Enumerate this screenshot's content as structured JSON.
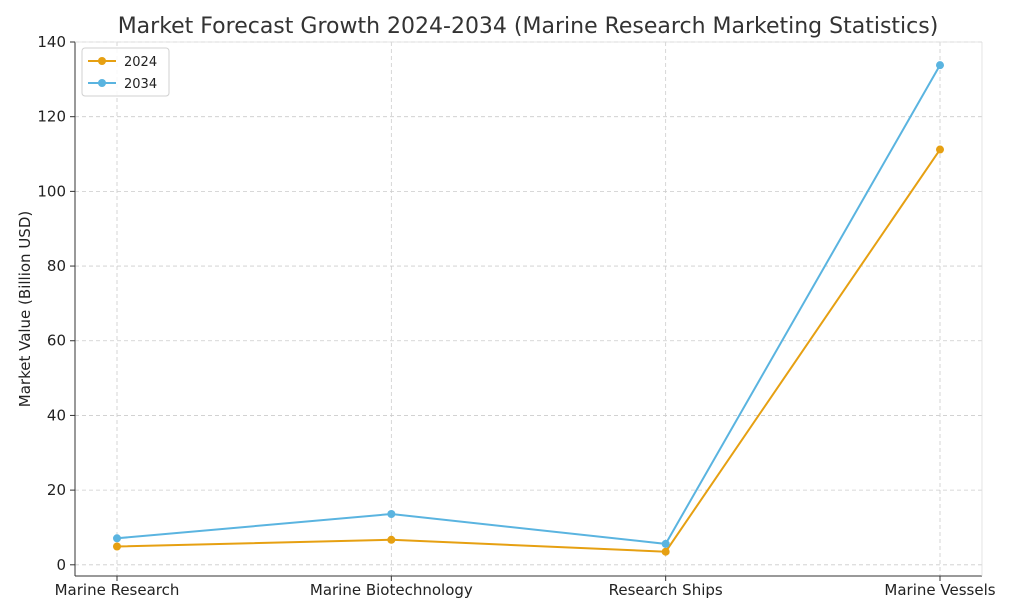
{
  "chart_data": {
    "type": "line",
    "title": "Market Forecast Growth 2024-2034 (Marine Research Marketing Statistics)",
    "xlabel": "",
    "ylabel": "Market Value (Billion USD)",
    "categories": [
      "Marine Research",
      "Marine Biotechnology",
      "Research Ships",
      "Marine Vessels"
    ],
    "series": [
      {
        "name": "2024",
        "color": "#e6a012",
        "values": [
          4.9,
          6.7,
          3.5,
          111.2
        ]
      },
      {
        "name": "2034",
        "color": "#5ab4e0",
        "values": [
          7.1,
          13.6,
          5.6,
          133.8
        ]
      }
    ],
    "ylim": [
      -3,
      140
    ],
    "yticks": [
      0,
      20,
      40,
      60,
      80,
      100,
      120,
      140
    ],
    "grid": true,
    "legend_position": "top-left"
  }
}
